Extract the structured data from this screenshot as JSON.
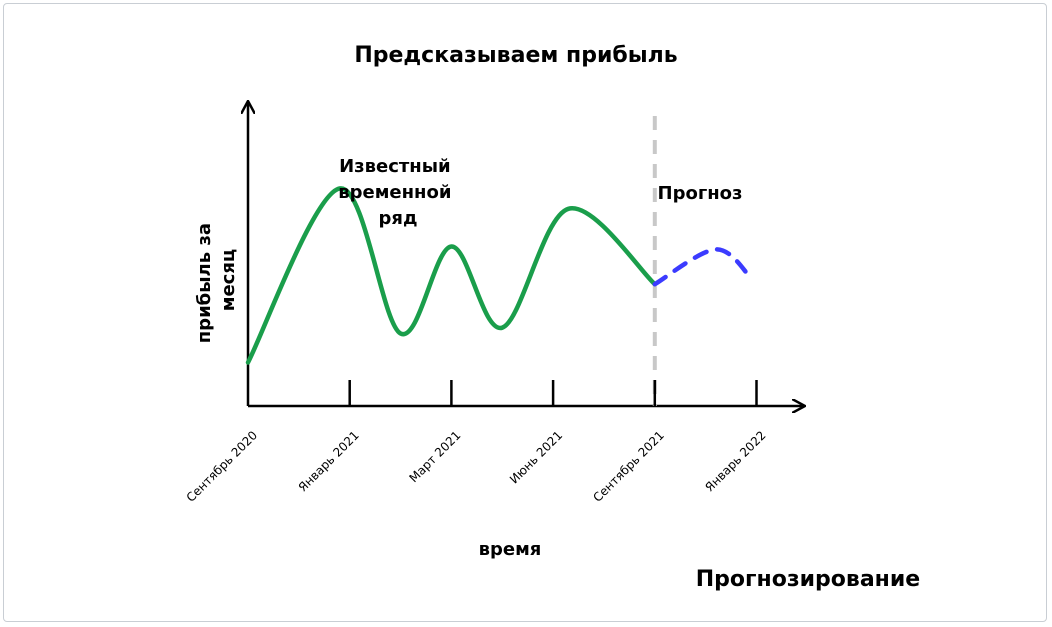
{
  "chart_data": {
    "type": "line",
    "title": "Предсказываем прибыль",
    "xlabel": "время",
    "ylabel_lines": [
      "прибыль за",
      "месяц"
    ],
    "x_ticks": [
      "Сентябрь 2020",
      "Январь 2021",
      "Март 2021",
      "Июнь 2021",
      "Сентябрь 2021",
      "Январь 2022"
    ],
    "annotations": {
      "known": [
        "Известный",
        "временной",
        "ряд"
      ],
      "forecast": "Прогноз"
    },
    "series": [
      {
        "role": "known",
        "color": "#1a9e4b",
        "style": "solid",
        "x": [
          0,
          0.9,
          1.5,
          2.0,
          2.5,
          3.15,
          4.0
        ],
        "y": [
          0.15,
          0.75,
          0.25,
          0.55,
          0.27,
          0.68,
          0.42
        ]
      },
      {
        "role": "forecast",
        "color": "#3b3bff",
        "style": "dashed",
        "x": [
          4.0,
          4.6,
          4.95
        ],
        "y": [
          0.42,
          0.54,
          0.44
        ]
      }
    ],
    "forecast_start_x": 4.0,
    "grid": false
  },
  "footer": "Прогнозирование"
}
